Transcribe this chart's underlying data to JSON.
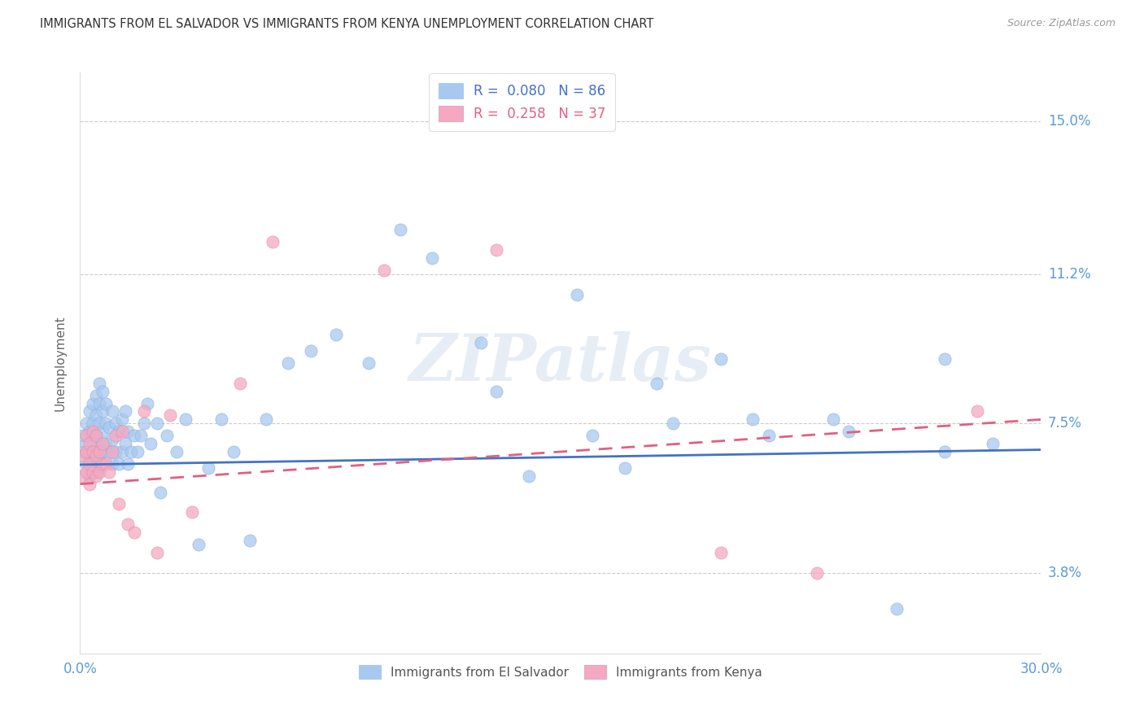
{
  "title": "IMMIGRANTS FROM EL SALVADOR VS IMMIGRANTS FROM KENYA UNEMPLOYMENT CORRELATION CHART",
  "source": "Source: ZipAtlas.com",
  "ylabel": "Unemployment",
  "x_min": 0.0,
  "x_max": 0.3,
  "y_min": 0.018,
  "y_max": 0.162,
  "y_ticks": [
    0.038,
    0.075,
    0.112,
    0.15
  ],
  "y_tick_labels": [
    "3.8%",
    "7.5%",
    "11.2%",
    "15.0%"
  ],
  "x_ticks": [
    0.0,
    0.3
  ],
  "x_tick_labels": [
    "0.0%",
    "30.0%"
  ],
  "color_salvador": "#a8c8f0",
  "color_kenya": "#f5a8c0",
  "color_salvador_line": "#4472c4",
  "color_kenya_line": "#e06080",
  "color_axis_text": "#5b9bd5",
  "watermark": "ZIPatlas",
  "salvador_x": [
    0.001,
    0.001,
    0.002,
    0.002,
    0.002,
    0.003,
    0.003,
    0.003,
    0.003,
    0.004,
    0.004,
    0.004,
    0.004,
    0.005,
    0.005,
    0.005,
    0.005,
    0.005,
    0.006,
    0.006,
    0.006,
    0.006,
    0.006,
    0.007,
    0.007,
    0.007,
    0.007,
    0.008,
    0.008,
    0.008,
    0.009,
    0.009,
    0.01,
    0.01,
    0.01,
    0.011,
    0.011,
    0.012,
    0.012,
    0.013,
    0.013,
    0.014,
    0.014,
    0.015,
    0.015,
    0.016,
    0.017,
    0.018,
    0.019,
    0.02,
    0.021,
    0.022,
    0.024,
    0.025,
    0.027,
    0.03,
    0.033,
    0.037,
    0.04,
    0.044,
    0.048,
    0.053,
    0.058,
    0.065,
    0.072,
    0.08,
    0.09,
    0.1,
    0.11,
    0.125,
    0.14,
    0.155,
    0.17,
    0.185,
    0.2,
    0.215,
    0.235,
    0.255,
    0.27,
    0.285,
    0.13,
    0.16,
    0.18,
    0.21,
    0.24,
    0.27
  ],
  "salvador_y": [
    0.068,
    0.072,
    0.065,
    0.07,
    0.075,
    0.062,
    0.068,
    0.073,
    0.078,
    0.065,
    0.07,
    0.075,
    0.08,
    0.063,
    0.068,
    0.072,
    0.077,
    0.082,
    0.066,
    0.07,
    0.075,
    0.08,
    0.085,
    0.068,
    0.073,
    0.078,
    0.083,
    0.07,
    0.075,
    0.08,
    0.068,
    0.074,
    0.065,
    0.071,
    0.078,
    0.068,
    0.075,
    0.065,
    0.073,
    0.068,
    0.076,
    0.07,
    0.078,
    0.065,
    0.073,
    0.068,
    0.072,
    0.068,
    0.072,
    0.075,
    0.08,
    0.07,
    0.075,
    0.058,
    0.072,
    0.068,
    0.076,
    0.045,
    0.064,
    0.076,
    0.068,
    0.046,
    0.076,
    0.09,
    0.093,
    0.097,
    0.09,
    0.123,
    0.116,
    0.095,
    0.062,
    0.107,
    0.064,
    0.075,
    0.091,
    0.072,
    0.076,
    0.029,
    0.091,
    0.07,
    0.083,
    0.072,
    0.085,
    0.076,
    0.073,
    0.068
  ],
  "kenya_x": [
    0.001,
    0.001,
    0.002,
    0.002,
    0.002,
    0.003,
    0.003,
    0.003,
    0.004,
    0.004,
    0.004,
    0.005,
    0.005,
    0.005,
    0.006,
    0.006,
    0.007,
    0.007,
    0.008,
    0.009,
    0.01,
    0.011,
    0.012,
    0.013,
    0.015,
    0.017,
    0.02,
    0.024,
    0.028,
    0.035,
    0.06,
    0.095,
    0.13,
    0.2,
    0.23,
    0.28,
    0.05
  ],
  "kenya_y": [
    0.062,
    0.067,
    0.063,
    0.068,
    0.072,
    0.06,
    0.065,
    0.07,
    0.063,
    0.068,
    0.073,
    0.062,
    0.067,
    0.072,
    0.063,
    0.068,
    0.065,
    0.07,
    0.065,
    0.063,
    0.068,
    0.072,
    0.055,
    0.073,
    0.05,
    0.048,
    0.078,
    0.043,
    0.077,
    0.053,
    0.12,
    0.113,
    0.118,
    0.043,
    0.038,
    0.078,
    0.085
  ],
  "sal_line_x": [
    0.0,
    0.3
  ],
  "sal_line_y": [
    0.0648,
    0.0685
  ],
  "ken_line_x": [
    0.0,
    0.3
  ],
  "ken_line_y": [
    0.06,
    0.076
  ]
}
